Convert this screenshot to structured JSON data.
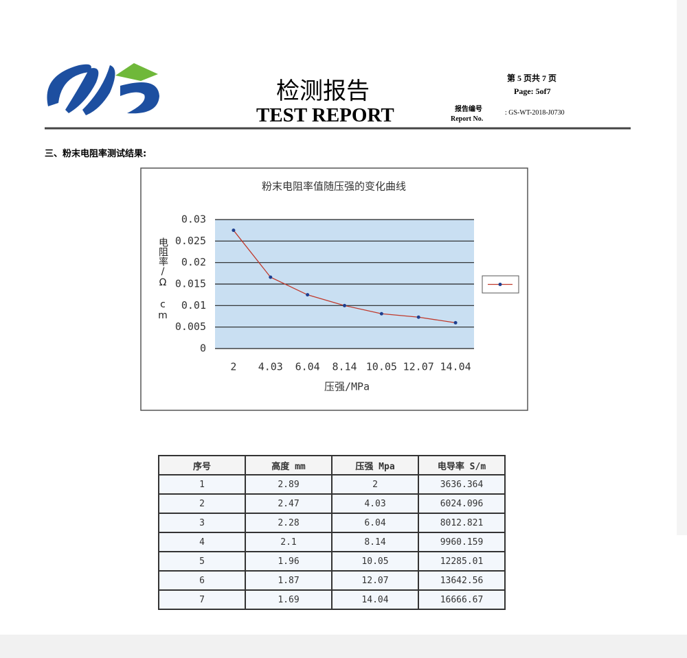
{
  "header": {
    "title_cn": "检测报告",
    "title_en": "TEST REPORT",
    "page_cn": "第 5 页共 7 页",
    "page_en": "Page: 5of7",
    "report_no_label_cn": "报告编号",
    "report_no_label_en": "Report No.",
    "report_no": ": GS-WT-2018-J0730"
  },
  "section_title": "三、粉末电阻率测试结果:",
  "chart_data": {
    "type": "line",
    "title": "粉末电阻率值随压强的变化曲线",
    "y_label": "电阻率/Ω cm",
    "x_label": "压强/MPa",
    "categories": [
      "2",
      "4.03",
      "6.04",
      "8.14",
      "10.05",
      "12.07",
      "14.04"
    ],
    "series": [
      {
        "color": "#c0392b",
        "marker_color": "#1f3f8f",
        "values": [
          0.0275,
          0.0166,
          0.0125,
          0.01,
          0.0081,
          0.0073,
          0.006
        ]
      }
    ],
    "ylim": [
      0,
      0.03
    ],
    "yticks": [
      0,
      0.005,
      0.01,
      0.015,
      0.02,
      0.025,
      0.03
    ],
    "grid": true,
    "legend": "right"
  },
  "table": {
    "header": [
      "序号",
      "高度 mm",
      "压强 Mpa",
      "电导率 S/m"
    ],
    "rows": [
      [
        "1",
        "2.89",
        "2",
        "3636.364"
      ],
      [
        "2",
        "2.47",
        "4.03",
        "6024.096"
      ],
      [
        "3",
        "2.28",
        "6.04",
        "8012.821"
      ],
      [
        "4",
        "2.1",
        "8.14",
        "9960.159"
      ],
      [
        "5",
        "1.96",
        "10.05",
        "12285.01"
      ],
      [
        "6",
        "1.87",
        "12.07",
        "13642.56"
      ],
      [
        "7",
        "1.69",
        "14.04",
        "16666.67"
      ]
    ]
  }
}
